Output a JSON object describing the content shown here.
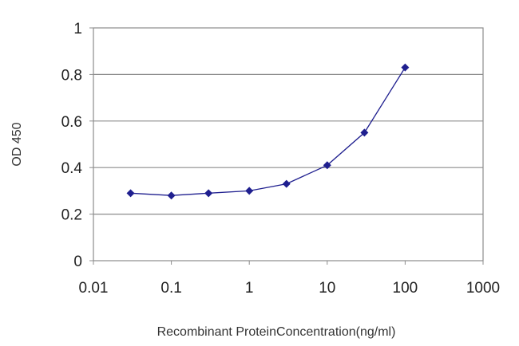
{
  "chart_data": {
    "type": "line",
    "title": "",
    "xlabel": "Recombinant ProteinConcentration(ng/ml)",
    "ylabel": "OD 450",
    "x_scale": "log",
    "xlim": [
      0.01,
      1000
    ],
    "ylim": [
      0,
      1
    ],
    "x_ticks": [
      "0.01",
      "0.1",
      "1",
      "10",
      "100",
      "1000"
    ],
    "y_ticks": [
      "0",
      "0.2",
      "0.4",
      "0.6",
      "0.8",
      "1"
    ],
    "grid": "horizontal",
    "legend": "none",
    "series": [
      {
        "color": "#1f1f8f",
        "marker": "diamond",
        "points": [
          {
            "x": 0.03,
            "y": 0.29
          },
          {
            "x": 0.1,
            "y": 0.28
          },
          {
            "x": 0.3,
            "y": 0.29
          },
          {
            "x": 1,
            "y": 0.3
          },
          {
            "x": 3,
            "y": 0.33
          },
          {
            "x": 10,
            "y": 0.41
          },
          {
            "x": 30,
            "y": 0.55
          },
          {
            "x": 100,
            "y": 0.83
          }
        ]
      }
    ]
  }
}
